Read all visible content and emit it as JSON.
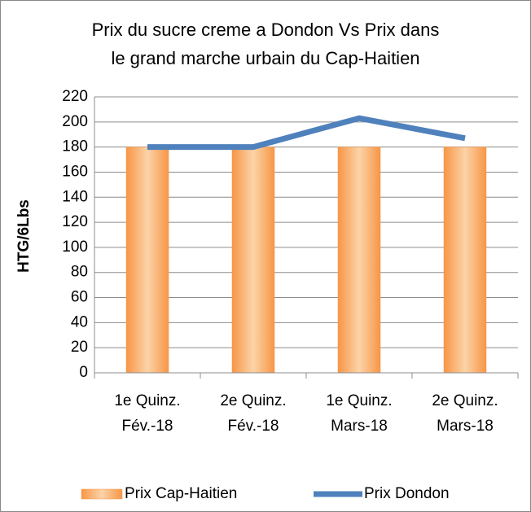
{
  "chart_data": {
    "type": "bar",
    "title": [
      "Prix du sucre creme a Dondon Vs Prix dans",
      "le grand marche urbain du Cap-Haitien"
    ],
    "y_label": "HTG/6Lbs",
    "categories": [
      [
        "1e Quinz.",
        "Fév.-18"
      ],
      [
        "2e Quinz.",
        "Fév.-18"
      ],
      [
        "1e Quinz.",
        "Mars-18"
      ],
      [
        "2e Quinz.",
        "Mars-18"
      ]
    ],
    "series": [
      {
        "name": "Prix Cap-Haitien",
        "type": "bar",
        "color": "#f79646",
        "values": [
          180,
          180,
          180,
          180
        ]
      },
      {
        "name": "Prix Dondon",
        "type": "line",
        "color": "#4f81bd",
        "values": [
          180,
          180,
          203,
          187
        ]
      }
    ],
    "ylim": [
      0,
      220
    ],
    "yticks": [
      0,
      20,
      40,
      60,
      80,
      100,
      120,
      140,
      160,
      180,
      200,
      220
    ],
    "grid": true,
    "legend": "bottom"
  }
}
